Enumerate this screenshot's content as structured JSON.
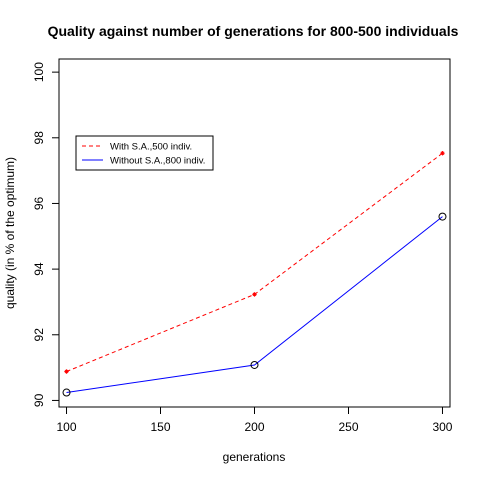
{
  "chart_data": {
    "type": "line",
    "title": "Quality against number of generations for 800-500 individuals",
    "xlabel": "generations",
    "ylabel": "quality (in % of the optimum)",
    "x": [
      100,
      200,
      300
    ],
    "xlim": [
      96,
      304
    ],
    "ylim": [
      89.8,
      100.4
    ],
    "xticks": [
      "100",
      "150",
      "200",
      "250",
      "300"
    ],
    "xtick_values": [
      100,
      150,
      200,
      250,
      300
    ],
    "yticks": [
      "90",
      "92",
      "94",
      "96",
      "98",
      "100"
    ],
    "ytick_values": [
      90,
      92,
      94,
      96,
      98,
      100
    ],
    "grid": false,
    "legend_position": "top-left",
    "series": [
      {
        "name": "With S.A.,500 indiv.",
        "values": [
          90.88,
          93.23,
          97.53
        ],
        "color": "#ff0000",
        "line": "dashed",
        "marker": "star"
      },
      {
        "name": "Without S.A.,800 indiv.",
        "values": [
          90.24,
          91.08,
          95.6
        ],
        "color": "#0000ff",
        "line": "solid",
        "marker": "circle"
      }
    ]
  }
}
